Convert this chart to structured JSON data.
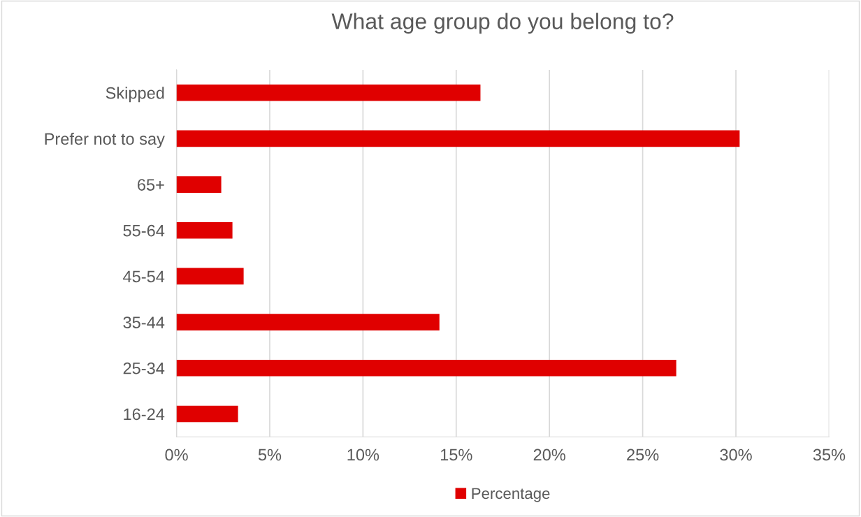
{
  "chart_data": {
    "type": "bar",
    "orientation": "horizontal",
    "title": "What age group do you belong to?",
    "categories": [
      "Skipped",
      "Prefer not to say",
      "65+",
      "55-64",
      "45-54",
      "35-44",
      "25-34",
      "16-24"
    ],
    "series": [
      {
        "name": "Percentage",
        "color": "#e00000",
        "values": [
          16.3,
          30.2,
          2.4,
          3.0,
          3.6,
          14.1,
          26.8,
          3.3
        ]
      }
    ],
    "xlim": [
      0,
      35
    ],
    "xticks": [
      {
        "value": 0,
        "label": "0%"
      },
      {
        "value": 5,
        "label": "5%"
      },
      {
        "value": 10,
        "label": "10%"
      },
      {
        "value": 15,
        "label": "15%"
      },
      {
        "value": 20,
        "label": "20%"
      },
      {
        "value": 25,
        "label": "25%"
      },
      {
        "value": 30,
        "label": "30%"
      },
      {
        "value": 35,
        "label": "35%"
      }
    ],
    "grid": "x",
    "legend": "bottom"
  }
}
